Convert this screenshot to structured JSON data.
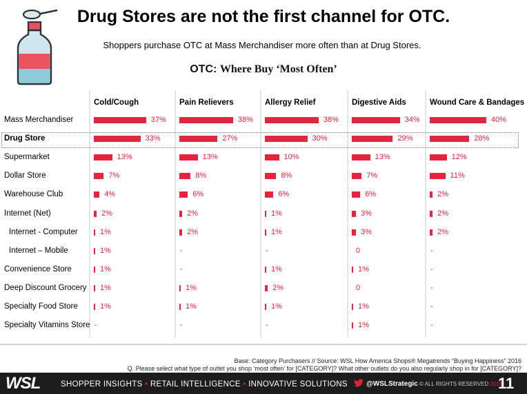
{
  "title": "Drug Stores are not the first channel for OTC.",
  "subtitle": "Shoppers purchase OTC at Mass Merchandiser more often than at Drug Stores.",
  "otc_heading": {
    "lead": "OTC:",
    "rest": "Where Buy ‘Most Often’"
  },
  "chart_data": {
    "type": "bar",
    "orientation": "horizontal",
    "columns": [
      "Cold/Cough",
      "Pain Relievers",
      "Allergy Relief",
      "Digestive Aids",
      "Wound Care & Bandages"
    ],
    "rows": [
      {
        "label": "Mass Merchandiser",
        "values": [
          37,
          38,
          38,
          34,
          40
        ],
        "display": [
          "37%",
          "38%",
          "38%",
          "34%",
          "40%"
        ]
      },
      {
        "label": "Drug Store",
        "bold": true,
        "highlight": true,
        "values": [
          33,
          27,
          30,
          29,
          28
        ],
        "display": [
          "33%",
          "27%",
          "30%",
          "29%",
          "28%"
        ]
      },
      {
        "label": "Supermarket",
        "values": [
          13,
          13,
          10,
          13,
          12
        ],
        "display": [
          "13%",
          "13%",
          "10%",
          "13%",
          "12%"
        ]
      },
      {
        "label": "Dollar Store",
        "values": [
          7,
          8,
          8,
          7,
          11
        ],
        "display": [
          "7%",
          "8%",
          "8%",
          "7%",
          "11%"
        ]
      },
      {
        "label": "Warehouse Club",
        "values": [
          4,
          6,
          6,
          6,
          2
        ],
        "display": [
          "4%",
          "6%",
          "6%",
          "6%",
          "2%"
        ]
      },
      {
        "label": "Internet (Net)",
        "values": [
          2,
          2,
          1,
          3,
          2
        ],
        "display": [
          "2%",
          "2%",
          "1%",
          "3%",
          "2%"
        ]
      },
      {
        "label": "Internet - Computer",
        "indent": true,
        "values": [
          1,
          2,
          1,
          3,
          2
        ],
        "display": [
          "1%",
          "2%",
          "1%",
          "3%",
          "2%"
        ]
      },
      {
        "label": "Internet – Mobile",
        "indent": true,
        "values": [
          1,
          null,
          null,
          0,
          null
        ],
        "display": [
          "1%",
          "-",
          "-",
          "0",
          "-"
        ]
      },
      {
        "label": "Convenience Store",
        "values": [
          1,
          null,
          1,
          1,
          null
        ],
        "display": [
          "1%",
          "-",
          "1%",
          "1%",
          "-"
        ]
      },
      {
        "label": "Deep Discount Grocery",
        "values": [
          1,
          1,
          2,
          0,
          null
        ],
        "display": [
          "1%",
          "1%",
          "2%",
          "0",
          "-"
        ]
      },
      {
        "label": "Specialty Food Store",
        "values": [
          1,
          1,
          1,
          1,
          null
        ],
        "display": [
          "1%",
          "1%",
          "1%",
          "1%",
          "-"
        ]
      },
      {
        "label": "Specialty Vitamins Store",
        "values": [
          null,
          null,
          null,
          1,
          null
        ],
        "display": [
          "-",
          "-",
          "-",
          "1%",
          "-"
        ]
      }
    ],
    "bar_color": "#e5253d",
    "value_color": "#e0213a"
  },
  "footer": {
    "source": "Base: Category Purchasers  // Source: WSL How America Shops® Megatrends “Buying Happiness” 2016",
    "question": "Q. Please select what type of outlet you shop ‘most often’ for [CATEGORY]? What other outlets do you also regularly shop in for [CATEGORY]?",
    "logo": "WSL",
    "tagline": [
      "SHOPPER INSIGHTS",
      "RETAIL INTELLIGENCE",
      "INNOVATIVE SOLUTIONS"
    ],
    "tagline_sep": "•",
    "twitter_handle": "@WSLStrategic",
    "copyright": "© ALL RIGHTS RESERVED",
    "copyright_year": "2016",
    "page_number": "11"
  },
  "icons": {
    "illustration": "medicine-bottle-and-spoon-icon",
    "social": "twitter-icon"
  }
}
